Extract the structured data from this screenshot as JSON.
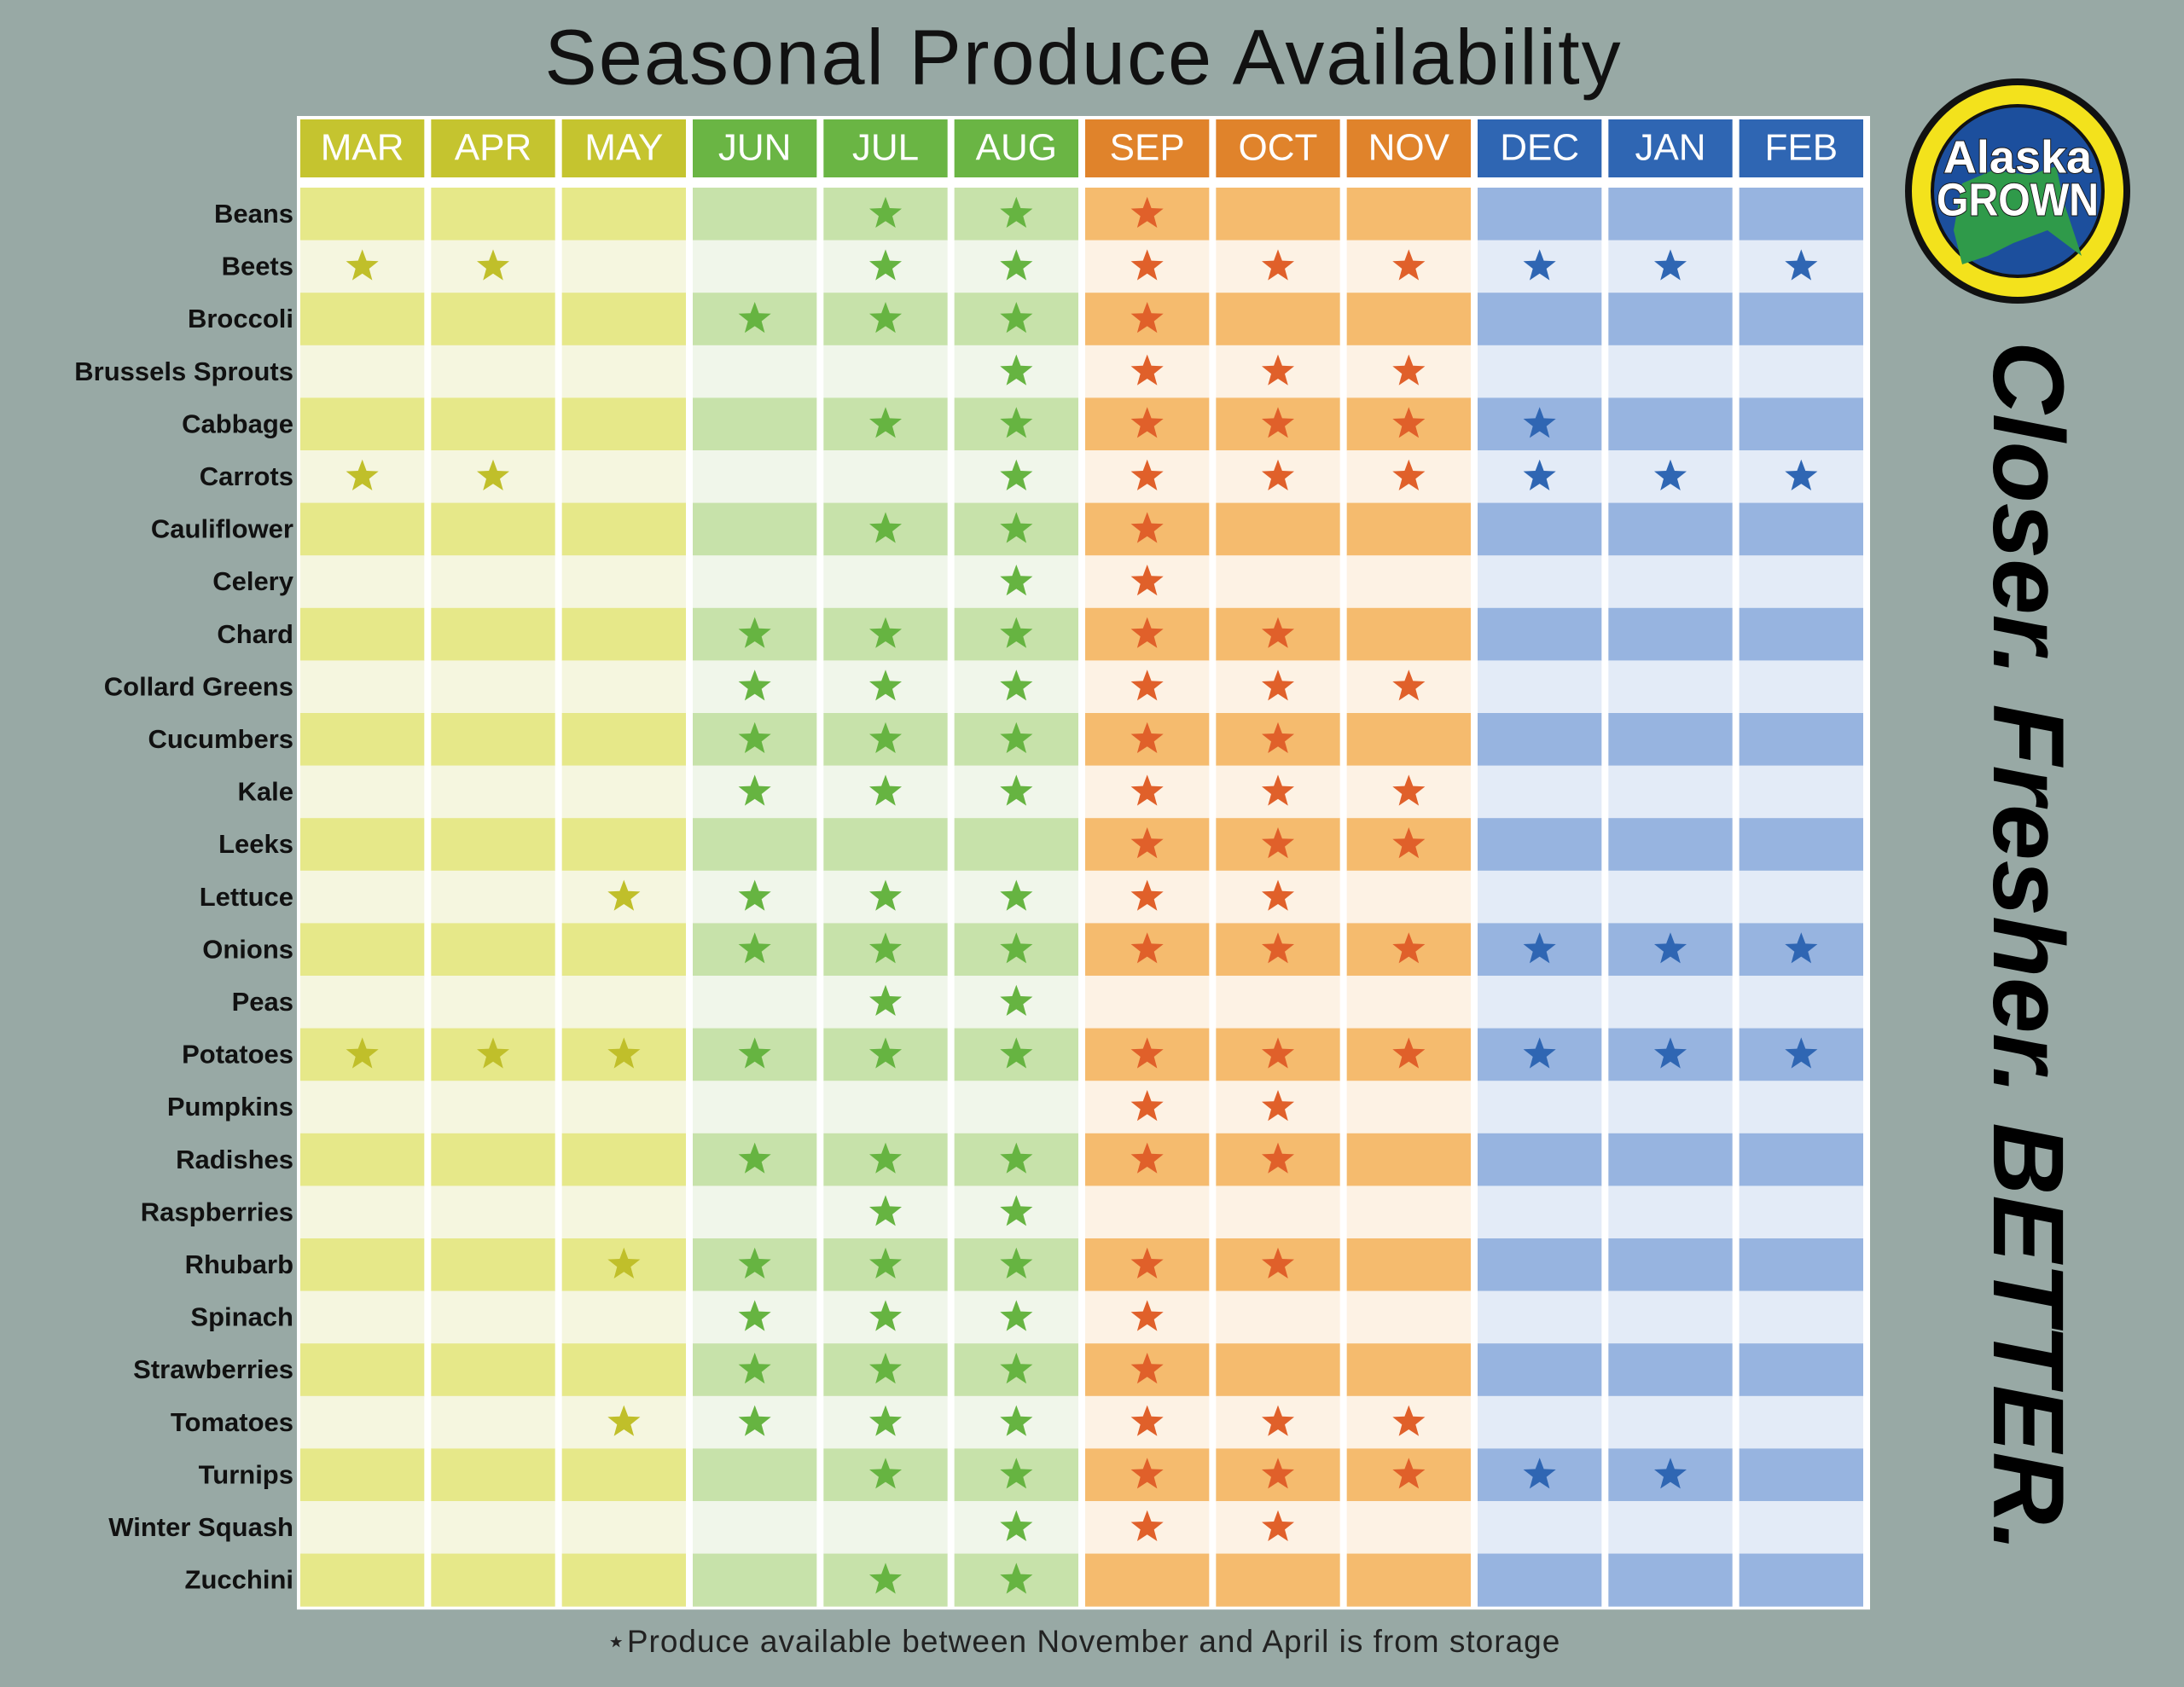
{
  "title": "Seasonal Produce Availability",
  "groups": [
    {
      "months": [
        "MAR",
        "APR",
        "MAY"
      ],
      "header_color": "#c5c42f",
      "cell_dark": "#e6e889",
      "cell_light": "#f5f6df",
      "star_color": "#c0bf2a"
    },
    {
      "months": [
        "JUN",
        "JUL",
        "AUG"
      ],
      "header_color": "#6ab544",
      "cell_dark": "#c7e2aa",
      "cell_light": "#f0f6ea",
      "star_color": "#66b441"
    },
    {
      "months": [
        "SEP",
        "OCT",
        "NOV"
      ],
      "header_color": "#e0832b",
      "cell_dark": "#f5bb6e",
      "cell_light": "#fdf2e4",
      "star_color": "#e0602a"
    },
    {
      "months": [
        "DEC",
        "JAN",
        "FEB"
      ],
      "header_color": "#2f66b3",
      "cell_dark": "#97b4e0",
      "cell_light": "#e3ebf7",
      "star_color": "#2f66b3"
    }
  ],
  "produce": [
    {
      "name": "Beans",
      "stars": [
        0,
        0,
        0,
        0,
        1,
        1,
        1,
        0,
        0,
        0,
        0,
        0
      ]
    },
    {
      "name": "Beets",
      "stars": [
        1,
        1,
        0,
        0,
        1,
        1,
        1,
        1,
        1,
        1,
        1,
        1
      ]
    },
    {
      "name": "Broccoli",
      "stars": [
        0,
        0,
        0,
        1,
        1,
        1,
        1,
        0,
        0,
        0,
        0,
        0
      ]
    },
    {
      "name": "Brussels Sprouts",
      "stars": [
        0,
        0,
        0,
        0,
        0,
        1,
        1,
        1,
        1,
        0,
        0,
        0
      ]
    },
    {
      "name": "Cabbage",
      "stars": [
        0,
        0,
        0,
        0,
        1,
        1,
        1,
        1,
        1,
        1,
        0,
        0
      ]
    },
    {
      "name": "Carrots",
      "stars": [
        1,
        1,
        0,
        0,
        0,
        1,
        1,
        1,
        1,
        1,
        1,
        1
      ]
    },
    {
      "name": "Cauliflower",
      "stars": [
        0,
        0,
        0,
        0,
        1,
        1,
        1,
        0,
        0,
        0,
        0,
        0
      ]
    },
    {
      "name": "Celery",
      "stars": [
        0,
        0,
        0,
        0,
        0,
        1,
        1,
        0,
        0,
        0,
        0,
        0
      ]
    },
    {
      "name": "Chard",
      "stars": [
        0,
        0,
        0,
        1,
        1,
        1,
        1,
        1,
        0,
        0,
        0,
        0
      ]
    },
    {
      "name": "Collard Greens",
      "stars": [
        0,
        0,
        0,
        1,
        1,
        1,
        1,
        1,
        1,
        0,
        0,
        0
      ]
    },
    {
      "name": "Cucumbers",
      "stars": [
        0,
        0,
        0,
        1,
        1,
        1,
        1,
        1,
        0,
        0,
        0,
        0
      ]
    },
    {
      "name": "Kale",
      "stars": [
        0,
        0,
        0,
        1,
        1,
        1,
        1,
        1,
        1,
        0,
        0,
        0
      ]
    },
    {
      "name": "Leeks",
      "stars": [
        0,
        0,
        0,
        0,
        0,
        0,
        1,
        1,
        1,
        0,
        0,
        0
      ]
    },
    {
      "name": "Lettuce",
      "stars": [
        0,
        0,
        1,
        1,
        1,
        1,
        1,
        1,
        0,
        0,
        0,
        0
      ]
    },
    {
      "name": "Onions",
      "stars": [
        0,
        0,
        0,
        1,
        1,
        1,
        1,
        1,
        1,
        1,
        1,
        1
      ]
    },
    {
      "name": "Peas",
      "stars": [
        0,
        0,
        0,
        0,
        1,
        1,
        0,
        0,
        0,
        0,
        0,
        0
      ]
    },
    {
      "name": "Potatoes",
      "stars": [
        1,
        1,
        1,
        1,
        1,
        1,
        1,
        1,
        1,
        1,
        1,
        1
      ]
    },
    {
      "name": "Pumpkins",
      "stars": [
        0,
        0,
        0,
        0,
        0,
        0,
        1,
        1,
        0,
        0,
        0,
        0
      ]
    },
    {
      "name": "Radishes",
      "stars": [
        0,
        0,
        0,
        1,
        1,
        1,
        1,
        1,
        0,
        0,
        0,
        0
      ]
    },
    {
      "name": "Raspberries",
      "stars": [
        0,
        0,
        0,
        0,
        1,
        1,
        0,
        0,
        0,
        0,
        0,
        0
      ]
    },
    {
      "name": "Rhubarb",
      "stars": [
        0,
        0,
        1,
        1,
        1,
        1,
        1,
        1,
        0,
        0,
        0,
        0
      ]
    },
    {
      "name": "Spinach",
      "stars": [
        0,
        0,
        0,
        1,
        1,
        1,
        1,
        0,
        0,
        0,
        0,
        0
      ]
    },
    {
      "name": "Strawberries",
      "stars": [
        0,
        0,
        0,
        1,
        1,
        1,
        1,
        0,
        0,
        0,
        0,
        0
      ]
    },
    {
      "name": "Tomatoes",
      "stars": [
        0,
        0,
        1,
        1,
        1,
        1,
        1,
        1,
        1,
        0,
        0,
        0
      ]
    },
    {
      "name": "Turnips",
      "stars": [
        0,
        0,
        0,
        0,
        1,
        1,
        1,
        1,
        1,
        1,
        1,
        0
      ]
    },
    {
      "name": "Winter Squash",
      "stars": [
        0,
        0,
        0,
        0,
        0,
        1,
        1,
        1,
        0,
        0,
        0,
        0
      ]
    },
    {
      "name": "Zucchini",
      "stars": [
        0,
        0,
        0,
        0,
        1,
        1,
        0,
        0,
        0,
        0,
        0,
        0
      ]
    }
  ],
  "footnote": "⋆Produce available between November and April is from storage",
  "slogan": "Closer. Fresher. BETTER.",
  "logo": {
    "line1": "Alaska",
    "line2": "GROWN"
  }
}
